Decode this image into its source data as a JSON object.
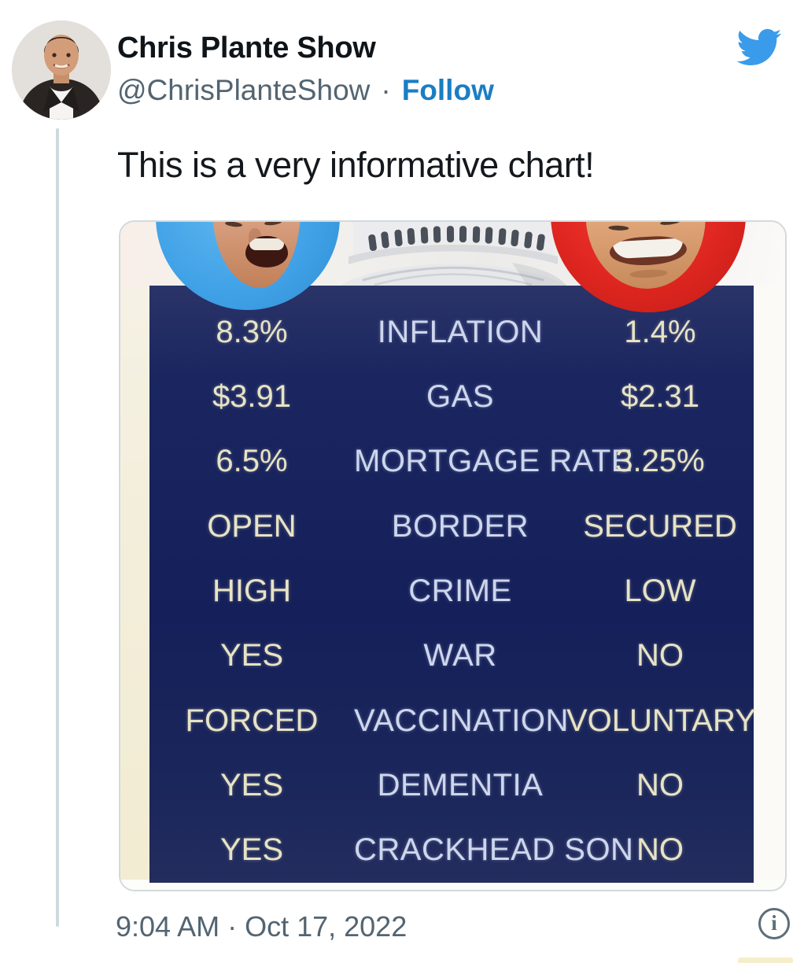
{
  "tweet": {
    "author_name": "Chris Plante Show",
    "handle": "@ChrisPlanteShow",
    "dot_separator": "·",
    "follow_label": "Follow",
    "body_text": "This is a very informative chart!",
    "timestamp": "9:04 AM · Oct 17, 2022",
    "info_glyph": "i"
  },
  "icons": {
    "twitter_bird": "twitter-bird-icon",
    "info": "info-circle-icon",
    "avatar": "profile-photo-man-in-dark-suit",
    "media_header": [
      "biden-face-in-blue-circle",
      "capitol-dome",
      "trump-face-in-red-circle"
    ]
  },
  "colors": {
    "twitter_blue": "#3a9bea",
    "follow_link": "#1b7dc4",
    "text_primary": "#0f1419",
    "text_secondary": "#536471",
    "card_border": "#d2dade",
    "chart_navy": "#15205a",
    "chart_side_text": "#e7e3c5",
    "chart_center_text": "#ced6ec",
    "biden_ring": "#41a2e7",
    "trump_ring": "#e02620",
    "cream_strip": "#f3eedb"
  },
  "chart_data": {
    "type": "table",
    "rows": [
      {
        "left": "8.3%",
        "topic": "INFLATION",
        "right": "1.4%"
      },
      {
        "left": "$3.91",
        "topic": "GAS",
        "right": "$2.31"
      },
      {
        "left": "6.5%",
        "topic": "MORTGAGE RATE",
        "right": "3.25%"
      },
      {
        "left": "OPEN",
        "topic": "BORDER",
        "right": "SECURED"
      },
      {
        "left": "HIGH",
        "topic": "CRIME",
        "right": "LOW"
      },
      {
        "left": "YES",
        "topic": "WAR",
        "right": "NO"
      },
      {
        "left": "FORCED",
        "topic": "VACCINATION",
        "right": "VOLUNTARY"
      },
      {
        "left": "YES",
        "topic": "DEMENTIA",
        "right": "NO"
      },
      {
        "left": "YES",
        "topic": "CRACKHEAD SON",
        "right": "NO"
      }
    ]
  }
}
